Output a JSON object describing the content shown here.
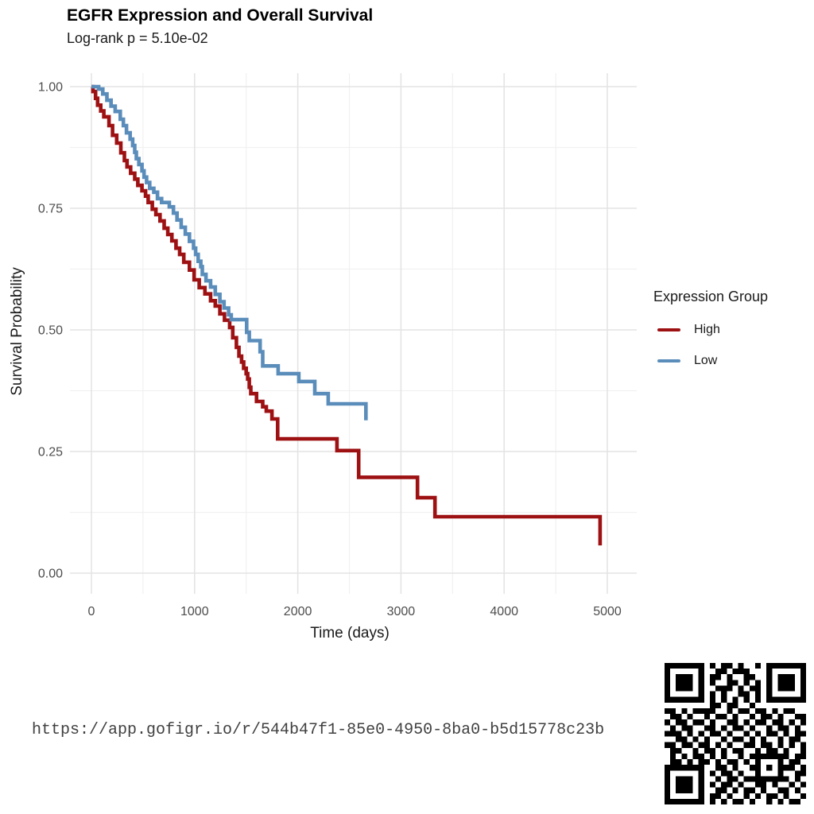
{
  "header": {
    "title": "EGFR Expression and Overall Survival",
    "subtitle": "Log-rank p = 5.10e-02"
  },
  "footer": {
    "url": "https://app.gofigr.io/r/544b47f1-85e0-4950-8ba0-b5d15778c23b"
  },
  "chart_data": {
    "type": "line",
    "subtype": "kaplan_meier_step",
    "title": "EGFR Expression and Overall Survival",
    "subtitle": "Log-rank p = 5.10e-02",
    "xlabel": "Time (days)",
    "ylabel": "Survival Probability",
    "xlim": [
      0,
      5000
    ],
    "ylim": [
      0,
      1
    ],
    "xticks": [
      0,
      1000,
      2000,
      3000,
      4000,
      5000
    ],
    "xtick_labels": [
      "0",
      "1000",
      "2000",
      "3000",
      "4000",
      "5000"
    ],
    "yticks": [
      0,
      0.25,
      0.5,
      0.75,
      1
    ],
    "ytick_labels": [
      "0.00",
      "0.25",
      "0.50",
      "0.75",
      "1.00"
    ],
    "grid": true,
    "legend_title": "Expression Group",
    "legend_position": "right",
    "series": [
      {
        "name": "High",
        "color": "#9e1113",
        "points": [
          [
            0,
            1.0
          ],
          [
            15,
            0.99
          ],
          [
            40,
            0.976
          ],
          [
            60,
            0.962
          ],
          [
            90,
            0.95
          ],
          [
            120,
            0.938
          ],
          [
            170,
            0.92
          ],
          [
            205,
            0.9
          ],
          [
            245,
            0.884
          ],
          [
            285,
            0.864
          ],
          [
            320,
            0.848
          ],
          [
            345,
            0.835
          ],
          [
            380,
            0.822
          ],
          [
            420,
            0.81
          ],
          [
            450,
            0.797
          ],
          [
            490,
            0.786
          ],
          [
            525,
            0.775
          ],
          [
            550,
            0.762
          ],
          [
            590,
            0.748
          ],
          [
            625,
            0.737
          ],
          [
            665,
            0.724
          ],
          [
            705,
            0.709
          ],
          [
            740,
            0.696
          ],
          [
            780,
            0.683
          ],
          [
            820,
            0.668
          ],
          [
            855,
            0.655
          ],
          [
            895,
            0.639
          ],
          [
            950,
            0.623
          ],
          [
            995,
            0.603
          ],
          [
            1045,
            0.587
          ],
          [
            1100,
            0.574
          ],
          [
            1155,
            0.56
          ],
          [
            1200,
            0.549
          ],
          [
            1245,
            0.533
          ],
          [
            1290,
            0.52
          ],
          [
            1340,
            0.505
          ],
          [
            1370,
            0.484
          ],
          [
            1405,
            0.464
          ],
          [
            1430,
            0.446
          ],
          [
            1455,
            0.434
          ],
          [
            1475,
            0.421
          ],
          [
            1500,
            0.41
          ],
          [
            1515,
            0.399
          ],
          [
            1530,
            0.382
          ],
          [
            1545,
            0.369
          ],
          [
            1600,
            0.353
          ],
          [
            1660,
            0.342
          ],
          [
            1695,
            0.333
          ],
          [
            1750,
            0.317
          ],
          [
            1805,
            0.276
          ],
          [
            2380,
            0.252
          ],
          [
            2590,
            0.197
          ],
          [
            3160,
            0.155
          ],
          [
            3330,
            0.116
          ],
          [
            4930,
            0.057
          ]
        ]
      },
      {
        "name": "Low",
        "color": "#5b8dbb",
        "points": [
          [
            0,
            1.0
          ],
          [
            70,
            0.995
          ],
          [
            110,
            0.985
          ],
          [
            150,
            0.972
          ],
          [
            190,
            0.96
          ],
          [
            230,
            0.949
          ],
          [
            280,
            0.933
          ],
          [
            310,
            0.92
          ],
          [
            340,
            0.905
          ],
          [
            375,
            0.892
          ],
          [
            400,
            0.879
          ],
          [
            420,
            0.865
          ],
          [
            435,
            0.852
          ],
          [
            460,
            0.84
          ],
          [
            490,
            0.827
          ],
          [
            510,
            0.814
          ],
          [
            535,
            0.803
          ],
          [
            565,
            0.791
          ],
          [
            605,
            0.783
          ],
          [
            640,
            0.77
          ],
          [
            680,
            0.762
          ],
          [
            755,
            0.753
          ],
          [
            795,
            0.74
          ],
          [
            830,
            0.726
          ],
          [
            870,
            0.711
          ],
          [
            910,
            0.697
          ],
          [
            950,
            0.682
          ],
          [
            990,
            0.668
          ],
          [
            1010,
            0.655
          ],
          [
            1035,
            0.641
          ],
          [
            1060,
            0.63
          ],
          [
            1075,
            0.614
          ],
          [
            1110,
            0.601
          ],
          [
            1155,
            0.588
          ],
          [
            1200,
            0.573
          ],
          [
            1245,
            0.558
          ],
          [
            1285,
            0.545
          ],
          [
            1330,
            0.531
          ],
          [
            1355,
            0.521
          ],
          [
            1505,
            0.495
          ],
          [
            1530,
            0.478
          ],
          [
            1635,
            0.455
          ],
          [
            1660,
            0.426
          ],
          [
            1810,
            0.41
          ],
          [
            2010,
            0.394
          ],
          [
            2165,
            0.369
          ],
          [
            2295,
            0.348
          ],
          [
            2660,
            0.314
          ]
        ]
      }
    ]
  },
  "style_colors": {
    "grid_major": "#e4e4e4",
    "grid_minor": "#f1f1f1",
    "tick_label": "#4d4d4d",
    "qr_dark": "#000000"
  },
  "qr": {
    "size": 25,
    "matrix": [
      "1111111010110100101111111",
      "1000001001101110001000001",
      "1011101011010011001011101",
      "1011101010011010101011101",
      "1011101001110101101011101",
      "1000001010100110101000001",
      "1111111010101010101111111",
      "0000000011011001000000000",
      "1101011110010110110101100",
      "0110100101101001011010011",
      "1011011010011010110110101",
      "0101100110101101001011010",
      "1110101011010010101101011",
      "0011010100101101010010110",
      "1101101101010011011010101",
      "0110010110101100101101001",
      "0101011010100101111111011",
      "0110101101011010100010110",
      "1111111001101001101011101",
      "1000001010110100100010011",
      "1011101001011011111111010",
      "1011101010110100110100101",
      "1011101001101011010011010",
      "1000001011010010101101001",
      "1111111010101101001010110"
    ]
  }
}
